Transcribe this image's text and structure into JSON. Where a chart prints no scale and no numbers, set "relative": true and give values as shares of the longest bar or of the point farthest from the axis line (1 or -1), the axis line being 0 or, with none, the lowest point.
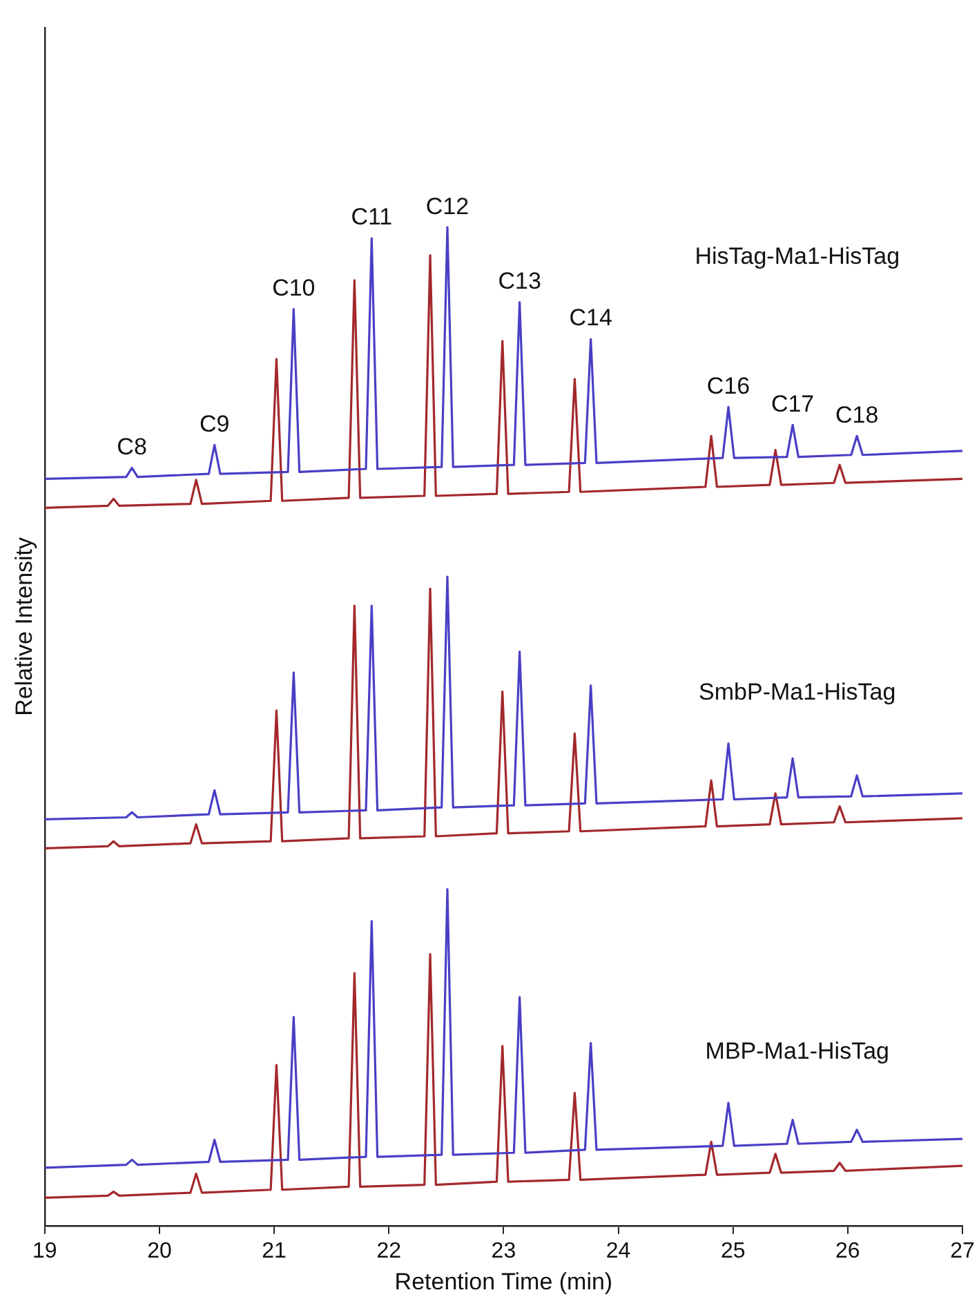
{
  "chart_data": {
    "type": "line",
    "relative": true,
    "xlabel": "Retention Time (min)",
    "ylabel": "Relative Intensity",
    "xlim": [
      19,
      27
    ],
    "xticks": [
      19,
      20,
      21,
      22,
      23,
      24,
      25,
      26,
      27
    ],
    "grid": false,
    "legend": false,
    "series": [
      {
        "color": "#4a3ec6",
        "x": [
          19,
          19.71,
          19.76,
          19.81,
          20.43,
          20.48,
          20.53,
          21.12,
          21.17,
          21.22,
          21.8,
          21.85,
          21.9,
          22.46,
          22.51,
          22.56,
          23.09,
          23.14,
          23.19,
          23.71,
          23.76,
          23.81,
          24.91,
          24.96,
          25.01,
          25.47,
          25.52,
          25.57,
          26.03,
          26.08,
          26.13,
          27
        ],
        "values": [
          0.748,
          0.75,
          0.759,
          0.75,
          0.753,
          0.782,
          0.753,
          0.755,
          0.918,
          0.755,
          0.758,
          0.989,
          0.758,
          0.76,
          1.0,
          0.76,
          0.762,
          0.925,
          0.762,
          0.764,
          0.888,
          0.764,
          0.769,
          0.82,
          0.769,
          0.77,
          0.802,
          0.77,
          0.772,
          0.791,
          0.772,
          0.776
        ]
      },
      {
        "color": "#a3282b",
        "x": [
          19,
          19.55,
          19.6,
          19.65,
          20.27,
          20.32,
          20.37,
          20.97,
          21.02,
          21.07,
          21.65,
          21.7,
          21.75,
          22.31,
          22.36,
          22.41,
          22.94,
          22.99,
          23.04,
          23.57,
          23.62,
          23.67,
          24.76,
          24.81,
          24.86,
          25.32,
          25.37,
          25.42,
          25.88,
          25.93,
          25.98,
          27
        ],
        "values": [
          0.719,
          0.721,
          0.728,
          0.721,
          0.723,
          0.747,
          0.723,
          0.726,
          0.868,
          0.726,
          0.729,
          0.947,
          0.729,
          0.731,
          0.972,
          0.731,
          0.733,
          0.886,
          0.733,
          0.735,
          0.848,
          0.735,
          0.74,
          0.791,
          0.74,
          0.742,
          0.777,
          0.742,
          0.744,
          0.762,
          0.744,
          0.748
        ]
      },
      {
        "color": "#4a3ec6",
        "x": [
          19,
          19.71,
          19.76,
          19.81,
          20.43,
          20.48,
          20.53,
          21.12,
          21.17,
          21.22,
          21.8,
          21.85,
          21.9,
          22.46,
          22.51,
          22.56,
          23.09,
          23.14,
          23.19,
          23.71,
          23.76,
          23.81,
          24.91,
          24.96,
          25.01,
          25.47,
          25.52,
          25.57,
          26.03,
          26.08,
          26.13,
          27
        ],
        "values": [
          0.407,
          0.409,
          0.414,
          0.409,
          0.412,
          0.436,
          0.412,
          0.414,
          0.554,
          0.414,
          0.416,
          0.621,
          0.416,
          0.419,
          0.65,
          0.419,
          0.421,
          0.575,
          0.421,
          0.423,
          0.541,
          0.423,
          0.427,
          0.483,
          0.427,
          0.429,
          0.468,
          0.429,
          0.43,
          0.451,
          0.43,
          0.433
        ]
      },
      {
        "color": "#a3282b",
        "x": [
          19,
          19.55,
          19.6,
          19.65,
          20.27,
          20.32,
          20.37,
          20.97,
          21.02,
          21.07,
          21.65,
          21.7,
          21.75,
          22.31,
          22.36,
          22.41,
          22.94,
          22.99,
          23.04,
          23.57,
          23.62,
          23.67,
          24.76,
          24.81,
          24.86,
          25.32,
          25.37,
          25.42,
          25.88,
          25.93,
          25.98,
          27
        ],
        "values": [
          0.378,
          0.38,
          0.385,
          0.38,
          0.383,
          0.402,
          0.383,
          0.385,
          0.516,
          0.385,
          0.388,
          0.621,
          0.388,
          0.39,
          0.638,
          0.39,
          0.393,
          0.535,
          0.393,
          0.395,
          0.493,
          0.395,
          0.4,
          0.446,
          0.4,
          0.402,
          0.433,
          0.402,
          0.404,
          0.42,
          0.404,
          0.408
        ]
      },
      {
        "color": "#4a3ec6",
        "x": [
          19,
          19.71,
          19.76,
          19.81,
          20.43,
          20.48,
          20.53,
          21.12,
          21.17,
          21.22,
          21.8,
          21.85,
          21.9,
          22.46,
          22.51,
          22.56,
          23.09,
          23.14,
          23.19,
          23.71,
          23.76,
          23.81,
          24.91,
          24.96,
          25.01,
          25.47,
          25.52,
          25.57,
          26.03,
          26.08,
          26.13,
          27
        ],
        "values": [
          0.058,
          0.061,
          0.066,
          0.061,
          0.064,
          0.086,
          0.064,
          0.066,
          0.209,
          0.066,
          0.069,
          0.305,
          0.069,
          0.071,
          0.337,
          0.071,
          0.073,
          0.229,
          0.073,
          0.076,
          0.183,
          0.076,
          0.08,
          0.123,
          0.08,
          0.082,
          0.106,
          0.082,
          0.084,
          0.096,
          0.084,
          0.087
        ]
      },
      {
        "color": "#a3282b",
        "x": [
          19,
          19.55,
          19.6,
          19.65,
          20.27,
          20.32,
          20.37,
          20.97,
          21.02,
          21.07,
          21.65,
          21.7,
          21.75,
          22.31,
          22.36,
          22.41,
          22.94,
          22.99,
          23.04,
          23.57,
          23.62,
          23.67,
          24.76,
          24.81,
          24.86,
          25.32,
          25.37,
          25.42,
          25.88,
          25.93,
          25.98,
          27
        ],
        "values": [
          0.028,
          0.03,
          0.034,
          0.03,
          0.033,
          0.052,
          0.033,
          0.036,
          0.161,
          0.036,
          0.039,
          0.253,
          0.039,
          0.041,
          0.272,
          0.041,
          0.044,
          0.18,
          0.044,
          0.046,
          0.133,
          0.046,
          0.051,
          0.084,
          0.051,
          0.053,
          0.072,
          0.053,
          0.055,
          0.063,
          0.055,
          0.06
        ]
      }
    ],
    "annotations": [
      {
        "text": "C8",
        "x": 19.76,
        "y": 0.759
      },
      {
        "text": "C9",
        "x": 20.48,
        "y": 0.782
      },
      {
        "text": "C10",
        "x": 21.17,
        "y": 0.918
      },
      {
        "text": "C11",
        "x": 21.85,
        "y": 0.989
      },
      {
        "text": "C12",
        "x": 22.51,
        "y": 1.0
      },
      {
        "text": "C13",
        "x": 23.14,
        "y": 0.925
      },
      {
        "text": "C14",
        "x": 23.76,
        "y": 0.888
      },
      {
        "text": "C16",
        "x": 24.96,
        "y": 0.82
      },
      {
        "text": "C17",
        "x": 25.52,
        "y": 0.802
      },
      {
        "text": "C18",
        "x": 26.08,
        "y": 0.791
      },
      "HisTag-Ma1-HisTag",
      "SmbP-Ma1-HisTag",
      "MBP-Ma1-HisTag"
    ]
  }
}
